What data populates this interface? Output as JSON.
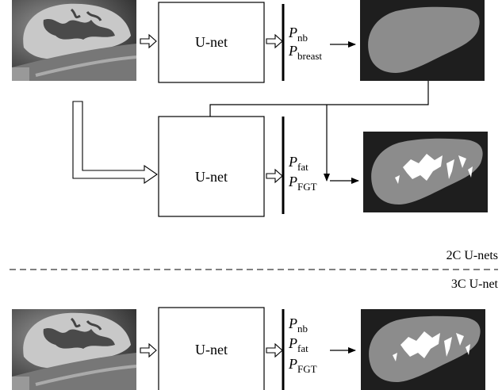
{
  "stage1": {
    "network": "U-net",
    "outputs": [
      {
        "symbol": "P",
        "subscript": "nb"
      },
      {
        "symbol": "P",
        "subscript": "breast"
      }
    ]
  },
  "stage2": {
    "network": "U-net",
    "outputs": [
      {
        "symbol": "P",
        "subscript": "fat"
      },
      {
        "symbol": "P",
        "subscript": "FGT"
      }
    ]
  },
  "labels": {
    "upper": "2C U-nets",
    "lower": "3C U-net"
  },
  "stage3": {
    "network": "U-net",
    "outputs": [
      {
        "symbol": "P",
        "subscript": "nb"
      },
      {
        "symbol": "P",
        "subscript": "fat"
      },
      {
        "symbol": "P",
        "subscript": "FGT"
      }
    ]
  }
}
